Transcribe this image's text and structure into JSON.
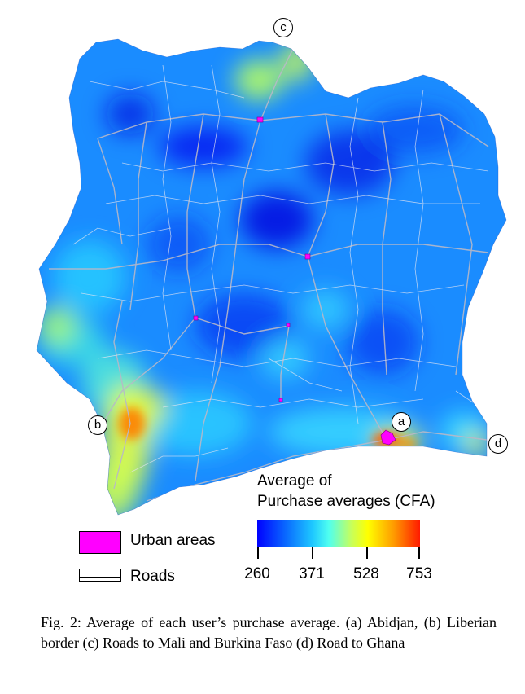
{
  "map": {
    "region": "Côte d'Ivoire",
    "markers": [
      {
        "id": "a",
        "label": "a"
      },
      {
        "id": "b",
        "label": "b"
      },
      {
        "id": "c",
        "label": "c"
      },
      {
        "id": "d",
        "label": "d"
      }
    ]
  },
  "legend": {
    "title_line1": "Average of",
    "title_line2": "Purchase averages (CFA)",
    "ticks": [
      "260",
      "371",
      "528",
      "753"
    ],
    "colors": {
      "low": "#0000ff",
      "mid_low": "#1ec8ff",
      "mid": "#ffff00",
      "high": "#ff1a00"
    },
    "urban_label": "Urban areas",
    "urban_color": "#ff00ff",
    "roads_label": "Roads"
  },
  "caption": "Fig. 2: Average of each user’s purchase average. (a) Abidjan, (b) Liberian border (c) Roads to Mali and Burkina Faso (d) Road to Ghana"
}
